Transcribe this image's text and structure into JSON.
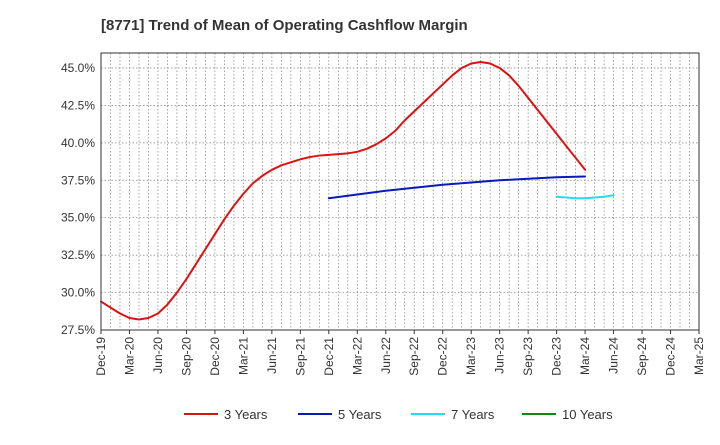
{
  "chart_data": {
    "type": "line",
    "title": "[8771]  Trend of Mean of Operating Cashflow Margin",
    "xlabel": "",
    "ylabel": "",
    "ylim": [
      27.5,
      46.0
    ],
    "y_ticks": [
      "27.5%",
      "30.0%",
      "32.5%",
      "35.0%",
      "37.5%",
      "40.0%",
      "42.5%",
      "45.0%"
    ],
    "y_tick_values": [
      27.5,
      30.0,
      32.5,
      35.0,
      37.5,
      40.0,
      42.5,
      45.0
    ],
    "x_ticks": [
      "Dec-19",
      "Mar-20",
      "Jun-20",
      "Sep-20",
      "Dec-20",
      "Mar-21",
      "Jun-21",
      "Sep-21",
      "Dec-21",
      "Mar-22",
      "Jun-22",
      "Sep-22",
      "Dec-22",
      "Mar-23",
      "Jun-23",
      "Sep-23",
      "Dec-23",
      "Mar-24",
      "Jun-24",
      "Sep-24",
      "Dec-24",
      "Mar-25"
    ],
    "grid": true,
    "legend_position": "bottom",
    "series": [
      {
        "name": "3 Years",
        "color": "#dd1111",
        "x": [
          "Dec-19",
          "Jan-20",
          "Feb-20",
          "Mar-20",
          "Apr-20",
          "May-20",
          "Jun-20",
          "Jul-20",
          "Aug-20",
          "Sep-20",
          "Oct-20",
          "Nov-20",
          "Dec-20",
          "Jan-21",
          "Feb-21",
          "Mar-21",
          "Apr-21",
          "May-21",
          "Jun-21",
          "Jul-21",
          "Aug-21",
          "Sep-21",
          "Oct-21",
          "Nov-21",
          "Dec-21",
          "Jan-22",
          "Feb-22",
          "Mar-22",
          "Apr-22",
          "May-22",
          "Jun-22",
          "Jul-22",
          "Aug-22",
          "Sep-22",
          "Oct-22",
          "Nov-22",
          "Dec-22",
          "Jan-23",
          "Feb-23",
          "Mar-23",
          "Apr-23",
          "May-23",
          "Jun-23",
          "Jul-23",
          "Aug-23",
          "Sep-23",
          "Oct-23",
          "Nov-23",
          "Dec-23",
          "Jan-24",
          "Feb-24",
          "Mar-24"
        ],
        "values": [
          29.4,
          29.0,
          28.6,
          28.3,
          28.2,
          28.3,
          28.6,
          29.2,
          30.0,
          30.9,
          31.9,
          32.9,
          33.9,
          34.9,
          35.8,
          36.6,
          37.3,
          37.8,
          38.2,
          38.5,
          38.7,
          38.9,
          39.05,
          39.15,
          39.2,
          39.25,
          39.3,
          39.4,
          39.6,
          39.9,
          40.3,
          40.8,
          41.5,
          42.1,
          42.7,
          43.3,
          43.9,
          44.5,
          45.0,
          45.3,
          45.4,
          45.3,
          45.0,
          44.5,
          43.8,
          43.0,
          42.2,
          41.4,
          40.6,
          39.8,
          39.0,
          38.2
        ]
      },
      {
        "name": "5 Years",
        "color": "#0a1aba",
        "x": [
          "Dec-21",
          "Mar-22",
          "Jun-22",
          "Sep-22",
          "Dec-22",
          "Mar-23",
          "Jun-23",
          "Sep-23",
          "Dec-23",
          "Mar-24"
        ],
        "values": [
          36.3,
          36.55,
          36.8,
          37.0,
          37.2,
          37.35,
          37.5,
          37.6,
          37.7,
          37.75
        ]
      },
      {
        "name": "7 Years",
        "color": "#22ddee",
        "x": [
          "Dec-23",
          "Jan-24",
          "Feb-24",
          "Mar-24",
          "Apr-24",
          "May-24",
          "Jun-24"
        ],
        "values": [
          36.4,
          36.35,
          36.3,
          36.3,
          36.35,
          36.4,
          36.5
        ]
      },
      {
        "name": "10 Years",
        "color": "#118811",
        "x": [],
        "values": []
      }
    ]
  }
}
